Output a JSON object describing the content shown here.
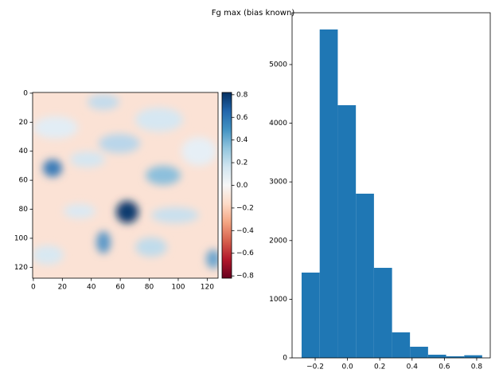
{
  "title": "Fg max (bias known)",
  "chart_data": [
    {
      "type": "image",
      "xlim": [
        -0.5,
        127.5
      ],
      "ylim": [
        127.5,
        -0.5
      ],
      "xticks": [
        0,
        20,
        40,
        60,
        80,
        100,
        120
      ],
      "yticks": [
        0,
        20,
        40,
        60,
        80,
        100,
        120
      ],
      "colorbar": {
        "clim": [
          -0.82,
          0.82
        ],
        "ticks": [
          {
            "value": -0.8,
            "label": "−0.8"
          },
          {
            "value": -0.6,
            "label": "−0.6"
          },
          {
            "value": -0.4,
            "label": "−0.4"
          },
          {
            "value": -0.2,
            "label": "−0.2"
          },
          {
            "value": 0,
            "label": "0.0"
          },
          0.2,
          0.4,
          0.6,
          0.8
        ],
        "colors": [
          "#67001f",
          "#b2182b",
          "#d6604d",
          "#f4a582",
          "#fddbc7",
          "#f7f7f7",
          "#d1e5f0",
          "#92c5de",
          "#4393c3",
          "#2166ac",
          "#053061"
        ]
      }
    },
    {
      "type": "histogram",
      "color": "#1f77b4",
      "bins": [
        -0.284,
        -0.172,
        -0.06,
        0.052,
        0.164,
        0.276,
        0.387,
        0.499,
        0.611,
        0.723,
        0.834
      ],
      "values": [
        1454,
        5598,
        4307,
        2799,
        1535,
        435,
        190,
        54,
        27,
        45
      ],
      "xlim": [
        -0.343,
        0.884
      ],
      "ylim": [
        0,
        5883
      ],
      "xticks": [
        {
          "value": -0.2,
          "label": "−0.2"
        },
        {
          "value": 0,
          "label": "0.0"
        },
        0.2,
        0.4,
        0.6,
        0.8
      ],
      "yticks": [
        0,
        1000,
        2000,
        3000,
        4000,
        5000
      ]
    }
  ]
}
